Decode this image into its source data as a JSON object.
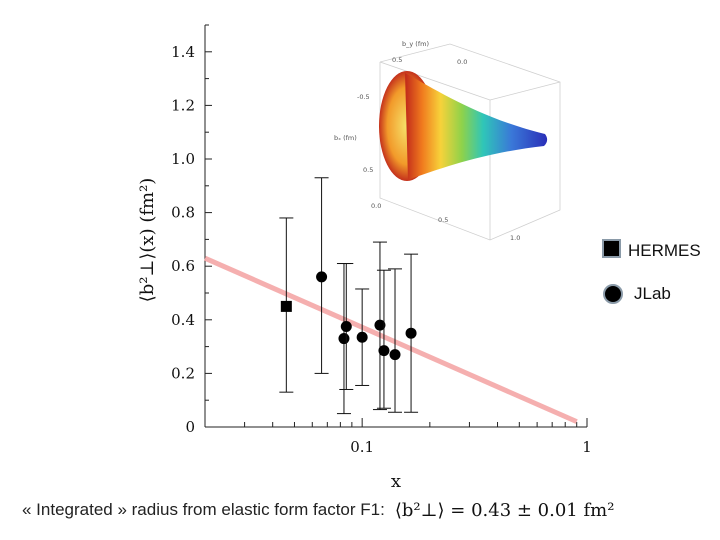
{
  "chart_data": {
    "type": "scatter",
    "xlabel": "x",
    "ylabel": "⟨b²⊥⟩(x) (fm²)",
    "xscale": "log",
    "xlim": [
      0.02,
      1
    ],
    "ylim": [
      0,
      1.5
    ],
    "x_ticks": [
      {
        "value": 0.1,
        "label": "0.1"
      },
      {
        "value": 1,
        "label": "1"
      }
    ],
    "y_ticks": [
      {
        "value": 0,
        "label": "0"
      },
      {
        "value": 0.2,
        "label": "0.2"
      },
      {
        "value": 0.4,
        "label": "0.4"
      },
      {
        "value": 0.6,
        "label": "0.6"
      },
      {
        "value": 0.8,
        "label": "0.8"
      },
      {
        "value": 1.0,
        "label": "1.0"
      },
      {
        "value": 1.2,
        "label": "1.2"
      },
      {
        "value": 1.4,
        "label": "1.4"
      }
    ],
    "series": [
      {
        "name": "HERMES",
        "marker": "square",
        "color": "#000000",
        "points": [
          {
            "x": 0.046,
            "y": 0.45,
            "ylow": 0.13,
            "yhigh": 0.78
          }
        ]
      },
      {
        "name": "JLab",
        "marker": "circle",
        "color": "#000000",
        "points": [
          {
            "x": 0.066,
            "y": 0.56,
            "ylow": 0.2,
            "yhigh": 0.93
          },
          {
            "x": 0.083,
            "y": 0.33,
            "ylow": 0.05,
            "yhigh": 0.61
          },
          {
            "x": 0.085,
            "y": 0.375,
            "ylow": 0.14,
            "yhigh": 0.61
          },
          {
            "x": 0.1,
            "y": 0.335,
            "ylow": 0.155,
            "yhigh": 0.515
          },
          {
            "x": 0.12,
            "y": 0.38,
            "ylow": 0.065,
            "yhigh": 0.69
          },
          {
            "x": 0.125,
            "y": 0.285,
            "ylow": 0.07,
            "yhigh": 0.585
          },
          {
            "x": 0.14,
            "y": 0.27,
            "ylow": 0.055,
            "yhigh": 0.59
          },
          {
            "x": 0.165,
            "y": 0.35,
            "ylow": 0.055,
            "yhigh": 0.645
          }
        ]
      }
    ],
    "trend_line": {
      "color": "#f4a6a6",
      "from": {
        "x": 0.02,
        "y": 0.63
      },
      "to": {
        "x": 0.9,
        "y": 0.02
      }
    },
    "legend_position": "right",
    "inset_3d_plot": {
      "axis_labels": [
        "bₓ (fm)",
        "b_y (fm)"
      ],
      "tick_labels": [
        "0.5",
        "-0.5",
        "0.5",
        "0.0",
        "0.5",
        "1.0",
        "0.0"
      ]
    }
  },
  "caption": {
    "text": "« Integrated » radius from elastic form factor F1:",
    "formula_text": "⟨b²⊥⟩ = 0.43 ± 0.01 fm²"
  }
}
